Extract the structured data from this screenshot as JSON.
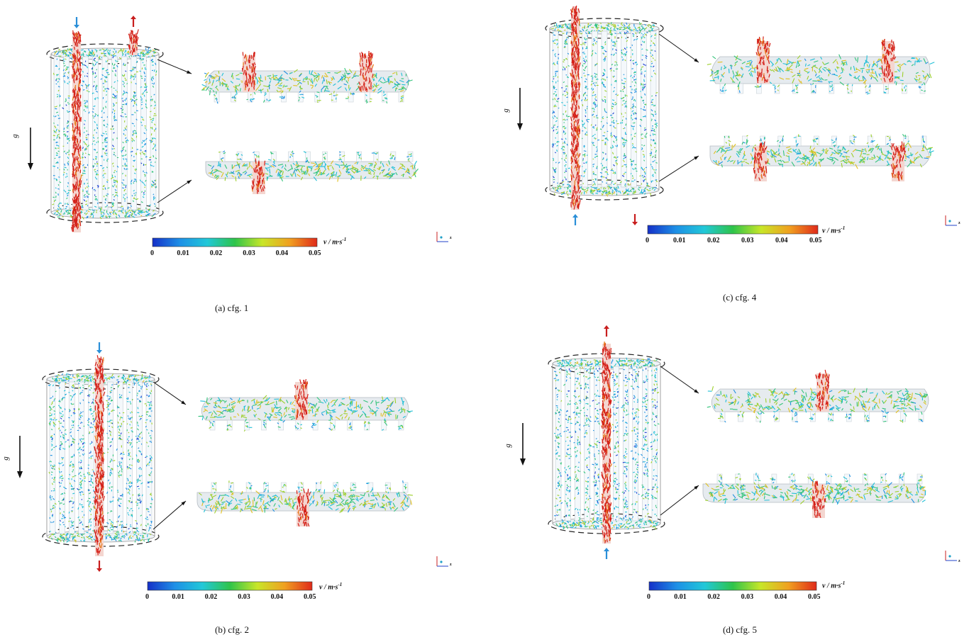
{
  "figure": {
    "panels": [
      {
        "id": "a",
        "caption": "(a) cfg. 1",
        "gravity_label": "g",
        "colorbar": {
          "title_symbol": "v",
          "title_unit": "/ m·s",
          "title_exponent": "-1",
          "ticks": [
            "0",
            "0.01",
            "0.02",
            "0.03",
            "0.04",
            "0.05"
          ],
          "range": [
            0,
            0.05
          ],
          "colors": [
            "#1530c8",
            "#1e90e6",
            "#22c8d8",
            "#2ec44a",
            "#c8e628",
            "#f0a020",
            "#e02a1a"
          ]
        },
        "inlet": "top",
        "outlet": "top",
        "axes": {
          "z": "z"
        }
      },
      {
        "id": "b",
        "caption": "(b) cfg. 2",
        "gravity_label": "g",
        "colorbar": {
          "title_symbol": "v",
          "title_unit": "/ m·s",
          "title_exponent": "-1",
          "ticks": [
            "0",
            "0.01",
            "0.02",
            "0.03",
            "0.04",
            "0.05"
          ],
          "range": [
            0,
            0.05
          ],
          "colors": [
            "#1530c8",
            "#1e90e6",
            "#22c8d8",
            "#2ec44a",
            "#c8e628",
            "#f0a020",
            "#e02a1a"
          ]
        },
        "inlet": "top",
        "outlet": "bottom",
        "axes": {
          "z": "z"
        }
      },
      {
        "id": "c",
        "caption": "(c) cfg. 4",
        "gravity_label": "g",
        "colorbar": {
          "title_symbol": "v",
          "title_unit": "/ m·s",
          "title_exponent": "-1",
          "ticks": [
            "0",
            "0.01",
            "0.02",
            "0.03",
            "0.04",
            "0.05"
          ],
          "range": [
            0,
            0.05
          ],
          "colors": [
            "#1530c8",
            "#1e90e6",
            "#22c8d8",
            "#2ec44a",
            "#c8e628",
            "#f0a020",
            "#e02a1a"
          ]
        },
        "inlet": "bottom",
        "outlet": "bottom",
        "axes": {
          "z": "z"
        }
      },
      {
        "id": "d",
        "caption": "(d) cfg. 5",
        "gravity_label": "g",
        "colorbar": {
          "title_symbol": "v",
          "title_unit": "/ m·s",
          "title_exponent": "-1",
          "ticks": [
            "0",
            "0.01",
            "0.02",
            "0.03",
            "0.04",
            "0.05"
          ],
          "range": [
            0,
            0.05
          ],
          "colors": [
            "#1530c8",
            "#1e90e6",
            "#22c8d8",
            "#2ec44a",
            "#c8e628",
            "#f0a020",
            "#e02a1a"
          ]
        },
        "inlet": "bottom",
        "outlet": "top",
        "axes": {
          "z": "z"
        }
      }
    ],
    "arrow_colors": {
      "inlet": "#2a8fd8",
      "outlet": "#c81e1e",
      "gravity": "#111111"
    }
  }
}
